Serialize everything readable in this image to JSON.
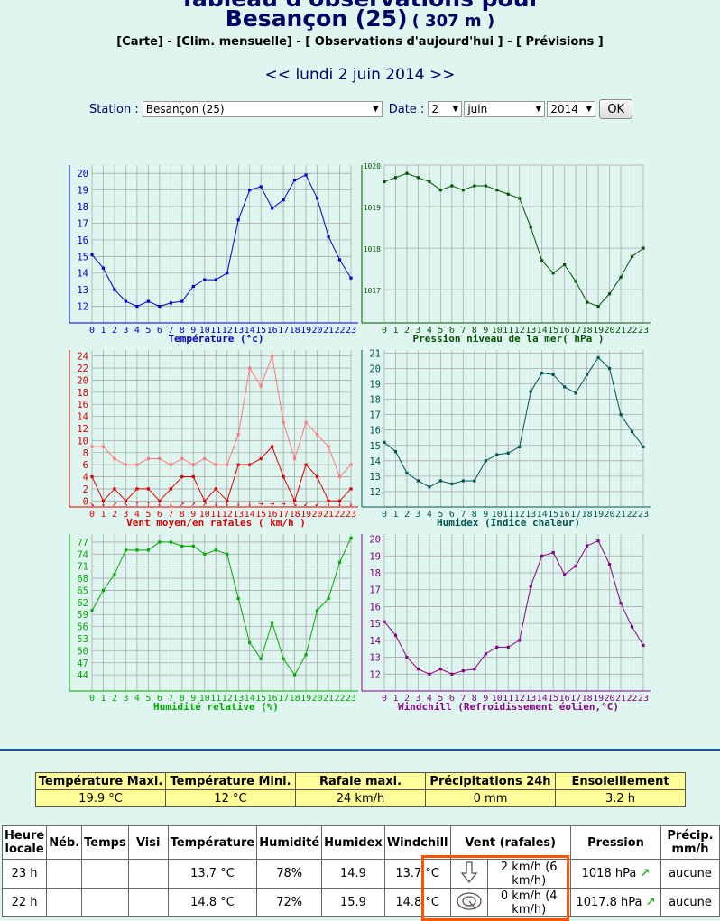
{
  "header": {
    "title_top": "Tableau d'observations pour",
    "city": "Besançon (25)",
    "altitude": "( 307 m )",
    "links": [
      "[Carte]",
      "[Clim. mensuelle]",
      "[ Observations d'aujourd'hui ]",
      "[ Prévisions ]"
    ],
    "link_sep": " - ",
    "date_prev": "<<",
    "date_label": "lundi 2 juin 2014",
    "date_next": ">>"
  },
  "form": {
    "station_label": "Station :",
    "station_value": "Besançon (25)",
    "date_label": "Date :",
    "day_value": "2",
    "month_value": "juin",
    "year_value": "2014",
    "ok_label": "OK"
  },
  "chart_data": [
    {
      "type": "line",
      "title": "Température (°c)",
      "x": [
        0,
        1,
        2,
        3,
        4,
        5,
        6,
        7,
        8,
        9,
        10,
        11,
        12,
        13,
        14,
        15,
        16,
        17,
        18,
        19,
        20,
        21,
        22,
        23
      ],
      "values": [
        15.1,
        14.3,
        13.0,
        12.3,
        12.0,
        12.3,
        12.0,
        12.2,
        12.3,
        13.2,
        13.6,
        13.6,
        14.0,
        17.2,
        19.0,
        19.2,
        17.9,
        18.4,
        19.6,
        19.9,
        18.5,
        16.2,
        14.8,
        13.7
      ],
      "ylim": [
        11,
        20.5
      ],
      "yticks": [
        12,
        13,
        14,
        15,
        16,
        17,
        18,
        19,
        20
      ],
      "color": "#0000cc",
      "grid": true
    },
    {
      "type": "line",
      "title": "Pression niveau de la mer( hPa )",
      "x": [
        0,
        1,
        2,
        3,
        4,
        5,
        6,
        7,
        8,
        9,
        10,
        11,
        12,
        13,
        14,
        15,
        16,
        17,
        18,
        19,
        20,
        21,
        22,
        23
      ],
      "values": [
        1019.6,
        1019.7,
        1019.8,
        1019.7,
        1019.6,
        1019.4,
        1019.5,
        1019.4,
        1019.5,
        1019.5,
        1019.4,
        1019.3,
        1019.2,
        1018.5,
        1017.7,
        1017.4,
        1017.6,
        1017.2,
        1016.7,
        1016.6,
        1016.9,
        1017.3,
        1017.8,
        1018.0
      ],
      "ylim": [
        1016.2,
        1020.0
      ],
      "yticks": [
        1017,
        1018,
        1019,
        1020
      ],
      "color": "#005500",
      "grid": true
    },
    {
      "type": "line",
      "title": "Vent moyen/en rafales ( km/h )",
      "x": [
        0,
        1,
        2,
        3,
        4,
        5,
        6,
        7,
        8,
        9,
        10,
        11,
        12,
        13,
        14,
        15,
        16,
        17,
        18,
        19,
        20,
        21,
        22,
        23
      ],
      "series": [
        {
          "values": [
            4,
            0,
            2,
            0,
            2,
            2,
            0,
            2,
            4,
            4,
            0,
            2,
            0,
            6,
            6,
            7,
            9,
            4,
            0,
            6,
            4,
            0,
            0,
            2
          ],
          "color": "#dd0000"
        },
        {
          "values": [
            9,
            9,
            7,
            6,
            6,
            7,
            7,
            6,
            7,
            6,
            7,
            6,
            6,
            11,
            22,
            19,
            24,
            13,
            7,
            13,
            11,
            9,
            4,
            6
          ],
          "color": "#ff7777"
        }
      ],
      "ylim": [
        -1,
        25
      ],
      "yticks": [
        0,
        2,
        4,
        6,
        8,
        10,
        12,
        14,
        16,
        18,
        20,
        22,
        24
      ],
      "wind_arrows": [
        "↘",
        "↓",
        "↗",
        "↖",
        "↑",
        "↑",
        "↓",
        "↓",
        "↗",
        "↗",
        "↗",
        "↓",
        "↓",
        "↓",
        "↓",
        "→",
        "→",
        "→",
        "↘",
        "↙",
        "↙",
        "↓",
        "↓",
        "↓"
      ],
      "grid": true
    },
    {
      "type": "line",
      "title": "Humidex (Indice chaleur)",
      "x": [
        0,
        1,
        2,
        3,
        4,
        5,
        6,
        7,
        8,
        9,
        10,
        11,
        12,
        13,
        14,
        15,
        16,
        17,
        18,
        19,
        20,
        21,
        22,
        23
      ],
      "values": [
        15.2,
        14.6,
        13.2,
        12.7,
        12.3,
        12.7,
        12.5,
        12.7,
        12.7,
        14.0,
        14.4,
        14.5,
        14.9,
        18.5,
        19.7,
        19.6,
        18.8,
        18.4,
        19.6,
        20.7,
        20.0,
        17.0,
        15.9,
        14.9
      ],
      "ylim": [
        11,
        21.2
      ],
      "yticks": [
        12,
        13,
        14,
        15,
        16,
        17,
        18,
        19,
        20,
        21
      ],
      "color": "#005555",
      "grid": true
    },
    {
      "type": "line",
      "title": "Humidité relative (%)",
      "x": [
        0,
        1,
        2,
        3,
        4,
        5,
        6,
        7,
        8,
        9,
        10,
        11,
        12,
        13,
        14,
        15,
        16,
        17,
        18,
        19,
        20,
        21,
        22,
        23
      ],
      "values": [
        60,
        65,
        69,
        75,
        75,
        75,
        77,
        77,
        76,
        76,
        74,
        75,
        74,
        63,
        52,
        48,
        57,
        48,
        44,
        49,
        60,
        63,
        72,
        78
      ],
      "ylim": [
        40,
        79
      ],
      "yticks": [
        44,
        47,
        50,
        53,
        56,
        59,
        62,
        65,
        68,
        71,
        74,
        77
      ],
      "color": "#00aa00",
      "grid": true
    },
    {
      "type": "line",
      "title": "Windchill (Refroidissement éolien,°C)",
      "x": [
        0,
        1,
        2,
        3,
        4,
        5,
        6,
        7,
        8,
        9,
        10,
        11,
        12,
        13,
        14,
        15,
        16,
        17,
        18,
        19,
        20,
        21,
        22,
        23
      ],
      "values": [
        15.1,
        14.3,
        13.0,
        12.3,
        12.0,
        12.3,
        12.0,
        12.2,
        12.3,
        13.2,
        13.6,
        13.6,
        14.0,
        17.2,
        19.0,
        19.2,
        17.9,
        18.4,
        19.6,
        19.9,
        18.5,
        16.2,
        14.8,
        13.7
      ],
      "ylim": [
        11,
        20.3
      ],
      "yticks": [
        12,
        13,
        14,
        15,
        16,
        17,
        18,
        19,
        20
      ],
      "color": "#880088",
      "grid": true
    }
  ],
  "summary": {
    "headers": [
      "Température Maxi.",
      "Température Mini.",
      "Rafale maxi.",
      "Précipitations 24h",
      "Ensoleillement"
    ],
    "values": [
      "19.9 °C",
      "12 °C",
      "24 km/h",
      "0 mm",
      "3.2 h"
    ]
  },
  "obs": {
    "headers": [
      "Heure locale",
      "Néb.",
      "Temps",
      "Visi",
      "Température",
      "Humidité",
      "Humidex",
      "Windchill",
      "Vent (rafales)",
      "Pression",
      "Précip. mm/h"
    ],
    "rows": [
      {
        "hour": "23 h",
        "neb": "",
        "temps": "",
        "visi": "",
        "temp": "13.7 °C",
        "hum": "78%",
        "humidex": "14.9",
        "windchill": "13.7 °C",
        "wind_icon": "arrow-down-icon",
        "wind": "2 km/h (6 km/h)",
        "pressure": "1018 hPa",
        "trend": "↗",
        "precip": "aucune"
      },
      {
        "hour": "22 h",
        "neb": "",
        "temps": "",
        "visi": "",
        "temp": "14.8 °C",
        "hum": "72%",
        "humidex": "15.9",
        "windchill": "14.8 °C",
        "wind_icon": "swirl-icon",
        "wind": "0 km/h (4 km/h)",
        "pressure": "1017.8 hPa",
        "trend": "↗",
        "precip": "aucune"
      }
    ]
  }
}
